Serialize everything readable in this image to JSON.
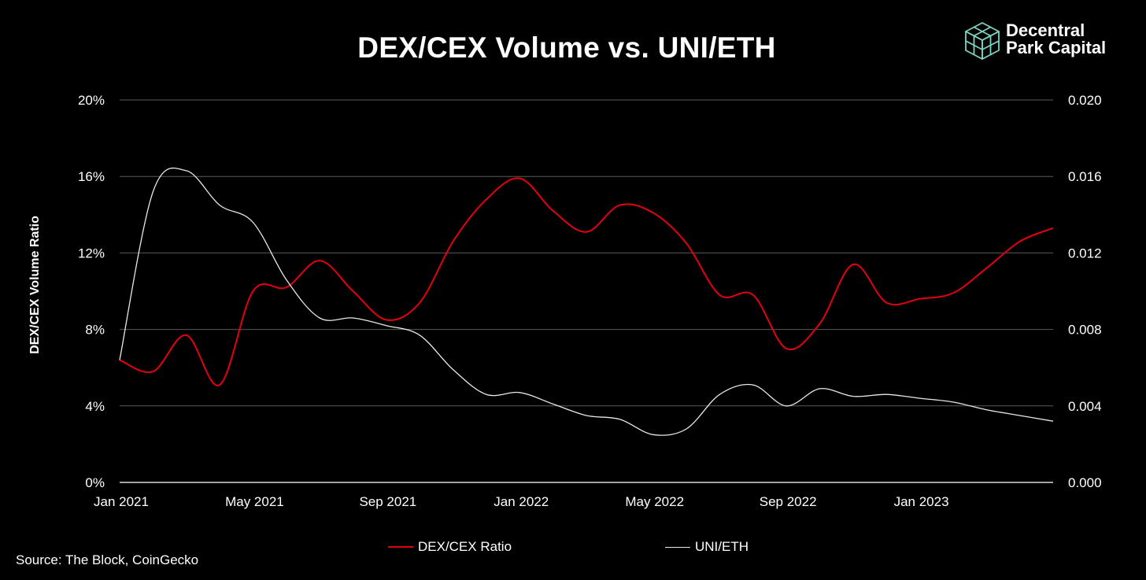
{
  "chart_data": {
    "type": "line",
    "title": "DEX/CEX Volume vs. UNI/ETH",
    "ylabel": "DEX/CEX Volume Ratio",
    "y2label": "",
    "xlabel": "",
    "ylim": [
      0,
      20
    ],
    "y2lim": [
      0,
      0.02
    ],
    "xlim": [
      "2021-01",
      "2023-05"
    ],
    "yticks": [
      "0%",
      "4%",
      "8%",
      "12%",
      "16%",
      "20%"
    ],
    "y2ticks": [
      "0.000",
      "0.004",
      "0.008",
      "0.012",
      "0.016",
      "0.020"
    ],
    "xticks": [
      {
        "label": "Jan 2021",
        "x": "2021-01"
      },
      {
        "label": "May 2021",
        "x": "2021-05"
      },
      {
        "label": "Sep 2021",
        "x": "2021-09"
      },
      {
        "label": "Jan 2022",
        "x": "2022-01"
      },
      {
        "label": "May 2022",
        "x": "2022-05"
      },
      {
        "label": "Sep 2022",
        "x": "2022-09"
      },
      {
        "label": "Jan 2023",
        "x": "2023-01"
      }
    ],
    "grid": true,
    "legend_position": "bottom-center",
    "series": [
      {
        "name": "DEX/CEX Ratio",
        "axis": "left",
        "color": "#e3000f",
        "x": [
          "2021-01",
          "2021-02",
          "2021-03",
          "2021-04",
          "2021-05",
          "2021-06",
          "2021-07",
          "2021-08",
          "2021-09",
          "2021-10",
          "2021-11",
          "2021-12",
          "2022-01",
          "2022-02",
          "2022-03",
          "2022-04",
          "2022-05",
          "2022-06",
          "2022-07",
          "2022-08",
          "2022-09",
          "2022-10",
          "2022-11",
          "2022-12",
          "2023-01",
          "2023-02",
          "2023-03",
          "2023-04",
          "2023-05"
        ],
        "values": [
          6.4,
          5.8,
          7.7,
          5.1,
          10.0,
          10.2,
          11.6,
          10.0,
          8.5,
          9.4,
          12.6,
          14.8,
          15.9,
          14.2,
          13.1,
          14.5,
          14.1,
          12.5,
          9.8,
          9.8,
          7.0,
          8.3,
          11.4,
          9.4,
          9.6,
          9.9,
          11.2,
          12.6,
          13.3
        ]
      },
      {
        "name": "UNI/ETH",
        "axis": "right",
        "color": "#e8e8e8",
        "x": [
          "2021-01",
          "2021-02",
          "2021-03",
          "2021-04",
          "2021-05",
          "2021-06",
          "2021-07",
          "2021-08",
          "2021-09",
          "2021-10",
          "2021-11",
          "2021-12",
          "2022-01",
          "2022-02",
          "2022-03",
          "2022-04",
          "2022-05",
          "2022-06",
          "2022-07",
          "2022-08",
          "2022-09",
          "2022-10",
          "2022-11",
          "2022-12",
          "2023-01",
          "2023-02",
          "2023-03",
          "2023-04",
          "2023-05"
        ],
        "values": [
          0.0064,
          0.0152,
          0.0163,
          0.0145,
          0.0136,
          0.0106,
          0.0086,
          0.0086,
          0.0082,
          0.0077,
          0.0059,
          0.0046,
          0.0047,
          0.0041,
          0.0035,
          0.0033,
          0.0025,
          0.0028,
          0.0046,
          0.0051,
          0.004,
          0.0049,
          0.0045,
          0.0046,
          0.0044,
          0.0042,
          0.0038,
          0.0035,
          0.0032
        ]
      }
    ]
  },
  "brand": {
    "line1": "Decentral",
    "line2": "Park Capital",
    "logo_icon": "isometric-cube-icon",
    "logo_color": "#7fd1c0"
  },
  "source": "Source: The Block, CoinGecko",
  "colors": {
    "background": "#000000",
    "gridline": "#5a5a5a",
    "dex_cex": "#e3000f",
    "uni_eth": "#e8e8e8"
  }
}
